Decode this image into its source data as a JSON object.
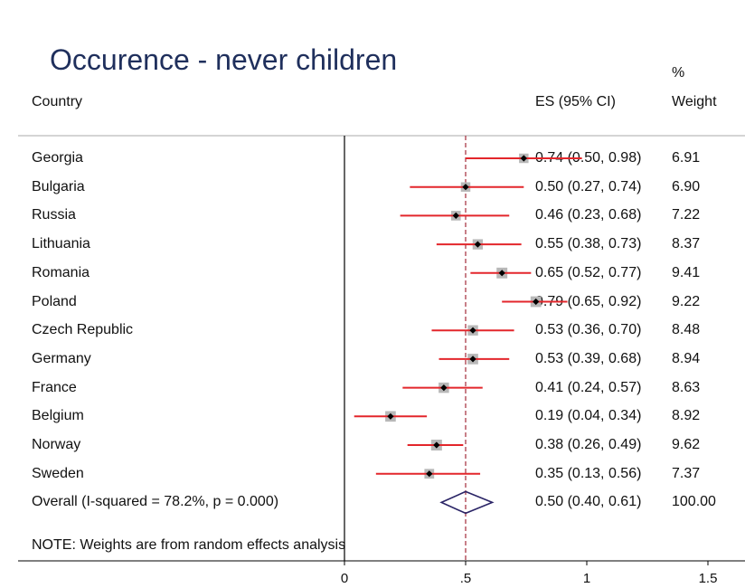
{
  "chart_data": {
    "type": "forest",
    "title": "Occurence - never children",
    "columns": {
      "country": "Country",
      "es": "ES (95% CI)",
      "weight_line1": "%",
      "weight_line2": "Weight"
    },
    "studies": [
      {
        "country": "Georgia",
        "es": 0.74,
        "lo": 0.5,
        "hi": 0.98,
        "es_text": "0.74 (0.50, 0.98)",
        "weight": "6.91"
      },
      {
        "country": "Bulgaria",
        "es": 0.5,
        "lo": 0.27,
        "hi": 0.74,
        "es_text": "0.50 (0.27, 0.74)",
        "weight": "6.90"
      },
      {
        "country": "Russia",
        "es": 0.46,
        "lo": 0.23,
        "hi": 0.68,
        "es_text": "0.46 (0.23, 0.68)",
        "weight": "7.22"
      },
      {
        "country": "Lithuania",
        "es": 0.55,
        "lo": 0.38,
        "hi": 0.73,
        "es_text": "0.55 (0.38, 0.73)",
        "weight": "8.37"
      },
      {
        "country": "Romania",
        "es": 0.65,
        "lo": 0.52,
        "hi": 0.77,
        "es_text": "0.65 (0.52, 0.77)",
        "weight": "9.41"
      },
      {
        "country": "Poland",
        "es": 0.79,
        "lo": 0.65,
        "hi": 0.92,
        "es_text": "0.79 (0.65, 0.92)",
        "weight": "9.22"
      },
      {
        "country": "Czech Republic",
        "es": 0.53,
        "lo": 0.36,
        "hi": 0.7,
        "es_text": "0.53 (0.36, 0.70)",
        "weight": "8.48"
      },
      {
        "country": "Germany",
        "es": 0.53,
        "lo": 0.39,
        "hi": 0.68,
        "es_text": "0.53 (0.39, 0.68)",
        "weight": "8.94"
      },
      {
        "country": "France",
        "es": 0.41,
        "lo": 0.24,
        "hi": 0.57,
        "es_text": "0.41 (0.24, 0.57)",
        "weight": "8.63"
      },
      {
        "country": "Belgium",
        "es": 0.19,
        "lo": 0.04,
        "hi": 0.34,
        "es_text": "0.19 (0.04, 0.34)",
        "weight": "8.92"
      },
      {
        "country": "Norway",
        "es": 0.38,
        "lo": 0.26,
        "hi": 0.49,
        "es_text": "0.38 (0.26, 0.49)",
        "weight": "9.62"
      },
      {
        "country": "Sweden",
        "es": 0.35,
        "lo": 0.13,
        "hi": 0.56,
        "es_text": "0.35 (0.13, 0.56)",
        "weight": "7.37"
      }
    ],
    "overall": {
      "label": "Overall  (I-squared = 78.2%, p = 0.000)",
      "es": 0.5,
      "lo": 0.4,
      "hi": 0.61,
      "es_text": "0.50 (0.40, 0.61)",
      "weight": "100.00"
    },
    "note": "NOTE: Weights are from random effects analysis",
    "xticks": [
      0,
      0.5,
      1,
      1.5
    ],
    "xtick_labels": [
      "0",
      ".5",
      "1",
      "1.5"
    ],
    "xlim": [
      0,
      1.5
    ],
    "null_line": 0,
    "colors": {
      "title": "#1f2f5c",
      "ci_line": "#e3262b",
      "point": "#000000",
      "weight_box": "#b8b8b8",
      "overall_line": "#a32b3a",
      "diamond": "#2a2466",
      "axis": "#000000",
      "rule": "#aaaaaa"
    }
  }
}
